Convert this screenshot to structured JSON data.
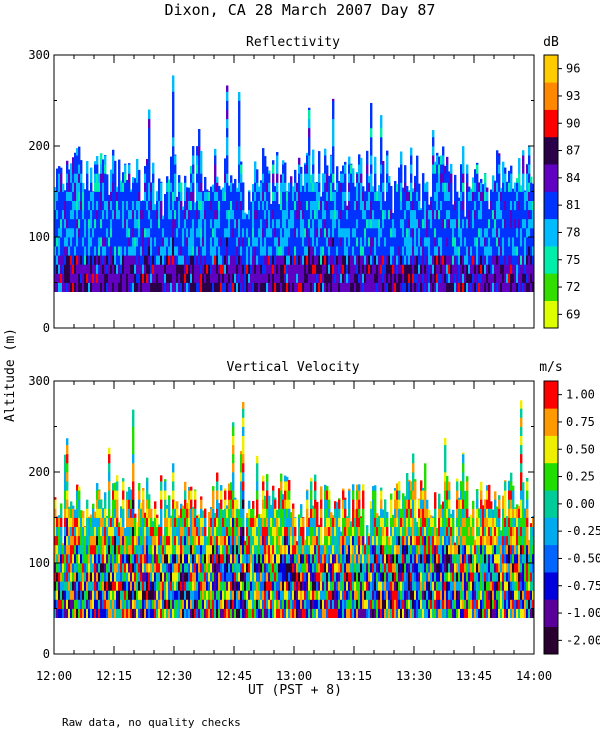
{
  "figure": {
    "title": "Dixon, CA 28 March 2007  Day  87",
    "ylabel": "Altitude (m)",
    "xlabel": "UT  (PST + 8)",
    "footnote": "Raw data, no quality checks"
  },
  "chart_data": [
    {
      "type": "heatmap",
      "title": "Reflectivity",
      "colorbar_label": "dB",
      "colorbar_ticks": [
        "69",
        "72",
        "75",
        "78",
        "81",
        "84",
        "87",
        "90",
        "93",
        "96"
      ],
      "colors": [
        "#ddff00",
        "#33dd00",
        "#00eeaa",
        "#00bbff",
        "#0033ff",
        "#6000c0",
        "#2a0048",
        "#ff0000",
        "#ff8800",
        "#ffcc00"
      ],
      "ylim": [
        0,
        300
      ],
      "yticks": [
        "0",
        "100",
        "200",
        "300"
      ],
      "echo_base_m": 40,
      "echo_top_typical_m": [
        150,
        200
      ],
      "echo_top_max_m": 280
    },
    {
      "type": "heatmap",
      "title": "Vertical Velocity",
      "colorbar_label": "m/s",
      "colorbar_ticks": [
        "-2.00",
        "-1.00",
        "-0.75",
        "-0.50",
        "-0.25",
        "0.00",
        "0.25",
        "0.50",
        "0.75",
        "1.00"
      ],
      "colors": [
        "#2a0030",
        "#5a009a",
        "#0000dd",
        "#0066ff",
        "#00aaee",
        "#00cc99",
        "#22dd00",
        "#eeee00",
        "#ff9900",
        "#ff0000"
      ],
      "ylim": [
        0,
        300
      ],
      "yticks": [
        "0",
        "100",
        "200",
        "300"
      ],
      "echo_base_m": 40,
      "echo_top_typical_m": [
        150,
        200
      ],
      "echo_top_max_m": 280
    }
  ],
  "xaxis": {
    "range_ut": [
      "12:00",
      "14:00"
    ],
    "ticks": [
      "12:00",
      "12:15",
      "12:30",
      "12:45",
      "13:00",
      "13:15",
      "13:30",
      "13:45",
      "14:00"
    ]
  }
}
